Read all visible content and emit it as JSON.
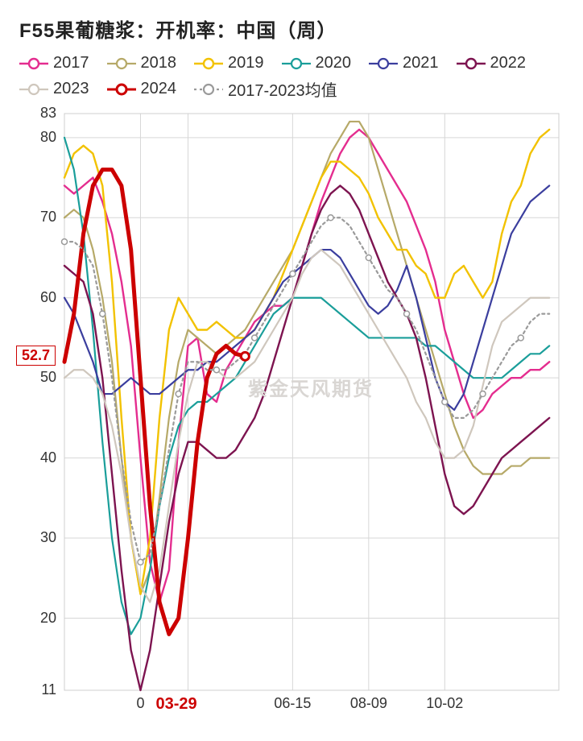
{
  "title": "F55果葡糖浆：开机率：中国（周）",
  "watermark": "紫金天风期货",
  "chart": {
    "type": "line",
    "background_color": "#ffffff",
    "plot_border_color": "#cfcfcf",
    "grid_color": "#d7d7d7",
    "axis_text_color": "#333333",
    "title_fontsize": 24,
    "legend_fontsize": 20,
    "axis_fontsize": 18,
    "x_range": [
      0,
      52
    ],
    "y_range": [
      11,
      83
    ],
    "y_ticks": [
      11,
      20,
      30,
      40,
      50,
      60,
      70,
      80,
      83
    ],
    "x_ticks": [
      {
        "pos": 8,
        "label": "0"
      },
      {
        "pos": 13,
        "label": "03-29",
        "highlight": true
      },
      {
        "pos": 24,
        "label": "06-15"
      },
      {
        "pos": 32,
        "label": "08-09"
      },
      {
        "pos": 40,
        "label": "10-02"
      }
    ],
    "callout": {
      "value": "52.7",
      "y": 52.7,
      "color": "#cc0000"
    },
    "legend_marker": "line-circle",
    "line_width_default": 2.2,
    "series": [
      {
        "name": "2017",
        "color": "#e42d8f",
        "width": 2.4,
        "y": [
          74,
          73,
          74,
          75,
          72,
          68,
          62,
          54,
          40,
          27,
          22,
          26,
          42,
          54,
          55,
          48,
          47,
          51,
          53,
          55,
          57,
          58,
          59,
          59,
          60,
          64,
          68,
          72,
          75,
          78,
          80,
          81,
          80,
          78,
          76,
          74,
          72,
          69,
          66,
          62,
          56,
          52,
          48,
          45,
          46,
          48,
          49,
          50,
          50,
          51,
          51,
          52
        ]
      },
      {
        "name": "2018",
        "color": "#b6a968",
        "width": 2.2,
        "y": [
          70,
          71,
          70,
          66,
          60,
          52,
          40,
          30,
          23,
          26,
          35,
          45,
          52,
          56,
          55,
          54,
          53,
          54,
          55,
          56,
          58,
          60,
          62,
          64,
          66,
          69,
          72,
          75,
          78,
          80,
          82,
          82,
          80,
          76,
          72,
          68,
          64,
          60,
          56,
          52,
          48,
          44,
          41,
          39,
          38,
          38,
          38,
          39,
          39,
          40,
          40,
          40
        ]
      },
      {
        "name": "2019",
        "color": "#f2c200",
        "width": 2.4,
        "y": [
          75,
          78,
          79,
          78,
          74,
          62,
          45,
          30,
          23,
          30,
          45,
          56,
          60,
          58,
          56,
          56,
          57,
          56,
          55,
          55,
          56,
          58,
          60,
          63,
          66,
          69,
          72,
          75,
          77,
          77,
          76,
          75,
          73,
          70,
          68,
          66,
          66,
          64,
          63,
          60,
          60,
          63,
          64,
          62,
          60,
          62,
          68,
          72,
          74,
          78,
          80,
          81
        ]
      },
      {
        "name": "2020",
        "color": "#1a9e9a",
        "width": 2.2,
        "y": [
          80,
          76,
          68,
          56,
          42,
          30,
          22,
          18,
          20,
          26,
          34,
          40,
          44,
          46,
          47,
          47,
          48,
          49,
          50,
          52,
          54,
          56,
          58,
          59,
          60,
          60,
          60,
          60,
          59,
          58,
          57,
          56,
          55,
          55,
          55,
          55,
          55,
          55,
          54,
          54,
          53,
          52,
          51,
          50,
          50,
          50,
          50,
          51,
          52,
          53,
          53,
          54
        ]
      },
      {
        "name": "2021",
        "color": "#3b3e9e",
        "width": 2.2,
        "y": [
          60,
          58,
          55,
          52,
          48,
          48,
          49,
          50,
          49,
          48,
          48,
          49,
          50,
          51,
          51,
          52,
          52,
          53,
          54,
          55,
          56,
          58,
          60,
          62,
          63,
          64,
          65,
          66,
          66,
          65,
          63,
          61,
          59,
          58,
          59,
          61,
          64,
          60,
          55,
          50,
          47,
          46,
          48,
          52,
          56,
          60,
          64,
          68,
          70,
          72,
          73,
          74
        ]
      },
      {
        "name": "2022",
        "color": "#7d1450",
        "width": 2.4,
        "y": [
          64,
          63,
          62,
          58,
          50,
          38,
          26,
          16,
          11,
          16,
          24,
          32,
          38,
          42,
          42,
          41,
          40,
          40,
          41,
          43,
          45,
          48,
          52,
          56,
          60,
          64,
          68,
          71,
          73,
          74,
          73,
          71,
          68,
          65,
          62,
          60,
          58,
          55,
          50,
          44,
          38,
          34,
          33,
          34,
          36,
          38,
          40,
          41,
          42,
          43,
          44,
          45
        ]
      },
      {
        "name": "2023",
        "color": "#cfc7bd",
        "width": 2.2,
        "y": [
          50,
          51,
          51,
          50,
          48,
          44,
          38,
          30,
          24,
          22,
          26,
          34,
          42,
          48,
          52,
          52,
          51,
          50,
          50,
          51,
          52,
          54,
          56,
          58,
          60,
          63,
          65,
          66,
          65,
          64,
          62,
          60,
          58,
          56,
          54,
          52,
          50,
          47,
          45,
          42,
          40,
          40,
          41,
          44,
          49,
          54,
          57,
          58,
          59,
          60,
          60,
          60
        ]
      },
      {
        "name": "2024",
        "color": "#cc0000",
        "width": 5,
        "y": [
          52,
          58,
          68,
          74,
          76,
          76,
          74,
          66,
          50,
          34,
          22,
          18,
          20,
          30,
          42,
          50,
          53,
          54,
          53,
          52.7
        ]
      },
      {
        "name": "2017-2023均值",
        "color": "#9a9a9a",
        "width": 2.2,
        "dash": "3,4",
        "marker": true,
        "y": [
          67,
          67,
          66,
          64,
          58,
          50,
          40,
          32,
          27,
          28,
          34,
          41,
          48,
          52,
          52,
          51,
          51,
          51,
          52,
          53,
          55,
          57,
          59,
          61,
          63,
          65,
          67,
          69,
          70,
          70,
          69,
          67,
          65,
          63,
          61,
          60,
          58,
          56,
          53,
          50,
          47,
          45,
          45,
          46,
          48,
          50,
          52,
          54,
          55,
          57,
          58,
          58
        ]
      }
    ]
  }
}
